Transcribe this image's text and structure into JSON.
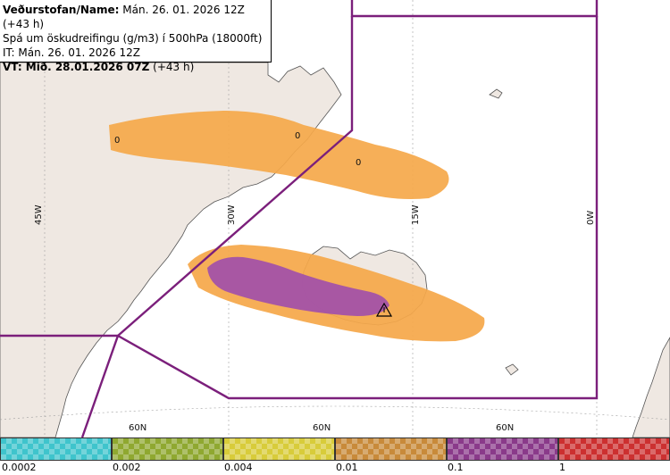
{
  "header": {
    "line1_label": "Veðurstofan/Name:",
    "line1_value": " Mán. 26. 01. 2026 12Z (+43 h)",
    "line2": "Spá um öskudreifingu (g/m3) í 500hPa (18000ft)",
    "line3": "IT: Mán. 26. 01. 2026 12Z",
    "line4_label": "VT: Mið. 28.01.2026 07Z",
    "line4_value": " (+43 h)"
  },
  "map": {
    "longitude_labels": [
      "45W",
      "30W",
      "15W",
      "0W"
    ],
    "latitude_labels": [
      "60N",
      "60N",
      "60N"
    ],
    "contour_labels": [
      "0",
      "0",
      "0"
    ],
    "colors": {
      "land": "#efe8e2",
      "sea": "#ffffff",
      "fir_boundary": "#7b1f7b",
      "graticule": "#a0a0a0",
      "orange": "#f5a84a",
      "purple": "#a352a8",
      "yellow": "#f4f09a",
      "cyan": "#8fe0ea"
    },
    "volcano_icon": "warning-triangle-icon"
  },
  "legend": {
    "labels": [
      "0.0002",
      "0.002",
      "0.004",
      "0.01",
      "0.1",
      "1"
    ],
    "colors": [
      "#3fc4cc",
      "#8fa830",
      "#d8cc3a",
      "#c88a3a",
      "#8a3a8a",
      "#cc3030"
    ]
  }
}
